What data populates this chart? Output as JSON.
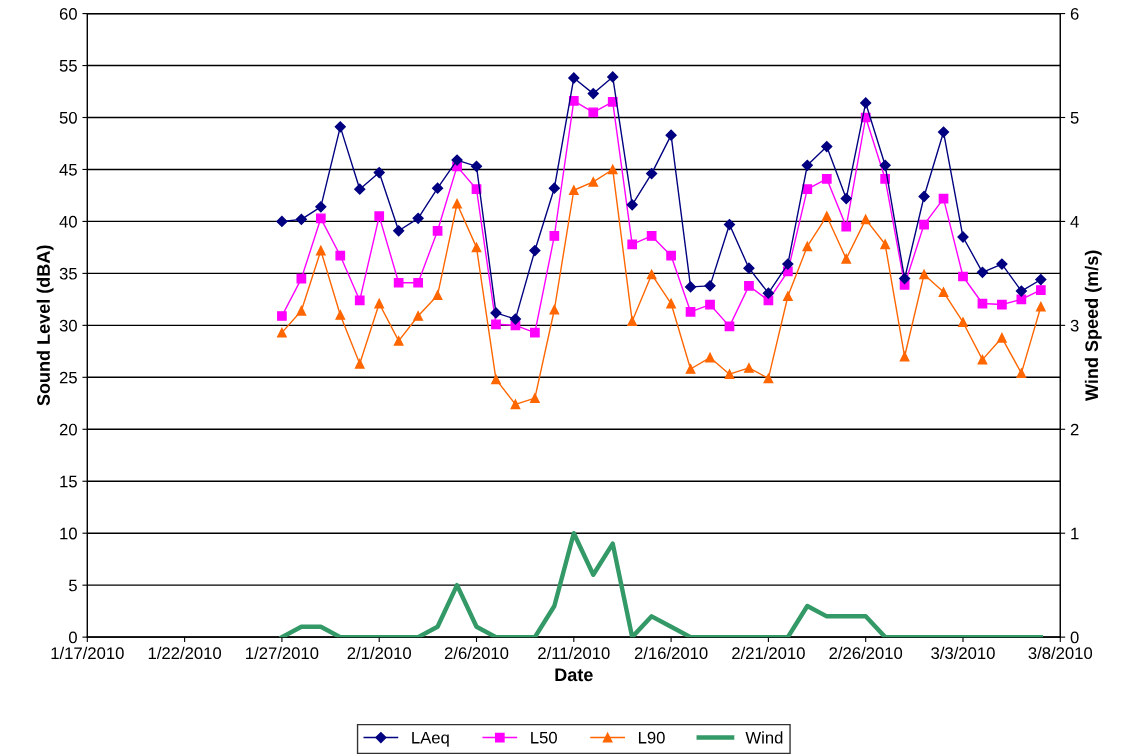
{
  "chart_data": {
    "type": "line",
    "xlabel": "Date",
    "ylabel": "Sound Level (dBA)",
    "y2label": "Wind Speed (m/s)",
    "x": [
      "2010-01-27",
      "2010-01-28",
      "2010-01-29",
      "2010-01-30",
      "2010-01-31",
      "2010-02-01",
      "2010-02-02",
      "2010-02-03",
      "2010-02-04",
      "2010-02-05",
      "2010-02-06",
      "2010-02-07",
      "2010-02-08",
      "2010-02-09",
      "2010-02-10",
      "2010-02-11",
      "2010-02-12",
      "2010-02-13",
      "2010-02-14",
      "2010-02-15",
      "2010-02-16",
      "2010-02-17",
      "2010-02-18",
      "2010-02-19",
      "2010-02-20",
      "2010-02-21",
      "2010-02-22",
      "2010-02-23",
      "2010-02-24",
      "2010-02-25",
      "2010-02-26",
      "2010-02-27",
      "2010-02-28",
      "2010-03-01",
      "2010-03-02",
      "2010-03-03",
      "2010-03-04",
      "2010-03-05",
      "2010-03-06",
      "2010-03-07"
    ],
    "series": [
      {
        "name": "LAeq",
        "color": "#000080",
        "marker": "diamond",
        "values": [
          40.0,
          40.2,
          41.4,
          49.1,
          43.1,
          44.7,
          39.1,
          40.3,
          43.2,
          45.9,
          45.3,
          31.2,
          30.6,
          37.2,
          43.2,
          53.8,
          52.3,
          53.9,
          41.6,
          44.6,
          48.3,
          33.7,
          33.8,
          39.7,
          35.5,
          33.1,
          35.9,
          45.4,
          47.2,
          42.2,
          51.4,
          45.4,
          34.5,
          42.4,
          48.6,
          38.5,
          35.1,
          35.9,
          33.3,
          34.4
        ]
      },
      {
        "name": "L50",
        "color": "#ff00ff",
        "marker": "square",
        "values": [
          30.9,
          34.5,
          40.3,
          36.7,
          32.4,
          40.5,
          34.1,
          34.1,
          39.1,
          45.3,
          43.1,
          30.1,
          30.0,
          29.3,
          38.6,
          51.6,
          50.5,
          51.5,
          37.8,
          38.6,
          36.7,
          31.3,
          32.0,
          29.9,
          33.8,
          32.4,
          35.2,
          43.1,
          44.1,
          39.5,
          50.0,
          44.1,
          33.9,
          39.7,
          42.2,
          34.7,
          32.1,
          32.0,
          32.5,
          33.4
        ]
      },
      {
        "name": "L90",
        "color": "#ff6600",
        "marker": "triangle",
        "values": [
          29.3,
          31.4,
          37.2,
          31.0,
          26.3,
          32.1,
          28.5,
          30.9,
          32.9,
          41.7,
          37.5,
          24.8,
          22.4,
          23.0,
          31.5,
          43.0,
          43.8,
          45.0,
          30.4,
          34.9,
          32.1,
          25.8,
          26.9,
          25.3,
          25.9,
          24.9,
          32.8,
          37.6,
          40.5,
          36.4,
          40.2,
          37.8,
          27.0,
          34.9,
          33.2,
          30.3,
          26.7,
          28.8,
          25.4,
          31.8
        ]
      },
      {
        "name": "Wind",
        "color": "#339966",
        "marker": "none",
        "axis": "y2",
        "values": [
          0,
          0.1,
          0.1,
          0,
          0,
          0,
          0,
          0,
          0.1,
          0.5,
          0.1,
          0,
          0,
          0,
          0.3,
          1.0,
          0.6,
          0.9,
          0,
          0.2,
          0.1,
          0,
          0,
          0,
          0,
          0,
          0,
          0.3,
          0.2,
          0.2,
          0.2,
          0,
          0,
          0,
          0,
          0,
          0,
          0,
          0,
          0
        ]
      }
    ],
    "xlim": [
      "2010-01-17",
      "2010-03-08"
    ],
    "xticks": [
      {
        "value": "2010-01-17",
        "label": "1/17/2010"
      },
      {
        "value": "2010-01-22",
        "label": "1/22/2010"
      },
      {
        "value": "2010-01-27",
        "label": "1/27/2010"
      },
      {
        "value": "2010-02-01",
        "label": "2/1/2010"
      },
      {
        "value": "2010-02-06",
        "label": "2/6/2010"
      },
      {
        "value": "2010-02-11",
        "label": "2/11/2010"
      },
      {
        "value": "2010-02-16",
        "label": "2/16/2010"
      },
      {
        "value": "2010-02-21",
        "label": "2/21/2010"
      },
      {
        "value": "2010-02-26",
        "label": "2/26/2010"
      },
      {
        "value": "2010-03-03",
        "label": "3/3/2010"
      },
      {
        "value": "2010-03-08",
        "label": "3/8/2010"
      }
    ],
    "ylim": [
      0,
      60
    ],
    "yticks": [
      0,
      5,
      10,
      15,
      20,
      25,
      30,
      35,
      40,
      45,
      50,
      55,
      60
    ],
    "y2lim": [
      0,
      6
    ],
    "y2ticks": [
      0,
      1,
      2,
      3,
      4,
      5,
      6
    ],
    "grid": "y",
    "legend": "bottom",
    "line_style": "solid"
  }
}
